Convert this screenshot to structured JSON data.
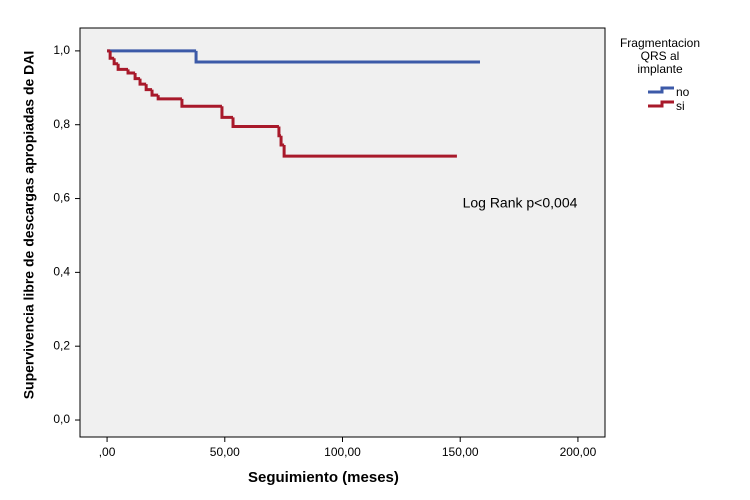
{
  "chart_data": {
    "type": "step",
    "xlabel": "Seguimiento (meses)",
    "ylabel": "Supervivencia libre de descargas apropiadas de DAI",
    "annotation": "Log Rank p<0,004",
    "legend_title": [
      "Fragmentacion",
      "QRS al",
      "implante"
    ],
    "legend": "right",
    "plot_background": "#f0f0f0",
    "xlim": [
      -11.5,
      211.5
    ],
    "ylim": [
      -0.046,
      1.062
    ],
    "xticks": [
      {
        "value": 0,
        "label": ",00"
      },
      {
        "value": 50,
        "label": "50,00"
      },
      {
        "value": 100,
        "label": "100,00"
      },
      {
        "value": 150,
        "label": "150,00"
      },
      {
        "value": 200,
        "label": "200,00"
      }
    ],
    "yticks": [
      {
        "value": 0,
        "label": "0,0"
      },
      {
        "value": 0.2,
        "label": "0,2"
      },
      {
        "value": 0.4,
        "label": "0,4"
      },
      {
        "value": 0.6,
        "label": "0,6"
      },
      {
        "value": 0.8,
        "label": "0,8"
      },
      {
        "value": 1.0,
        "label": "1,0"
      }
    ],
    "series": [
      {
        "name": "no",
        "color": "#3c5aa8",
        "x": [
          0,
          37.8,
          158.4
        ],
        "values": [
          1.0,
          0.97,
          0.97
        ]
      },
      {
        "name": "si",
        "color": "#a8192a",
        "x": [
          0,
          1.3,
          3.0,
          4.7,
          8.9,
          11.9,
          14.0,
          16.6,
          19.1,
          21.7,
          31.8,
          48.8,
          53.5,
          73.0,
          73.9,
          75.2,
          148.6
        ],
        "values": [
          1.0,
          0.98,
          0.965,
          0.95,
          0.94,
          0.925,
          0.91,
          0.895,
          0.88,
          0.87,
          0.85,
          0.82,
          0.795,
          0.77,
          0.745,
          0.715,
          0.715
        ]
      }
    ]
  }
}
